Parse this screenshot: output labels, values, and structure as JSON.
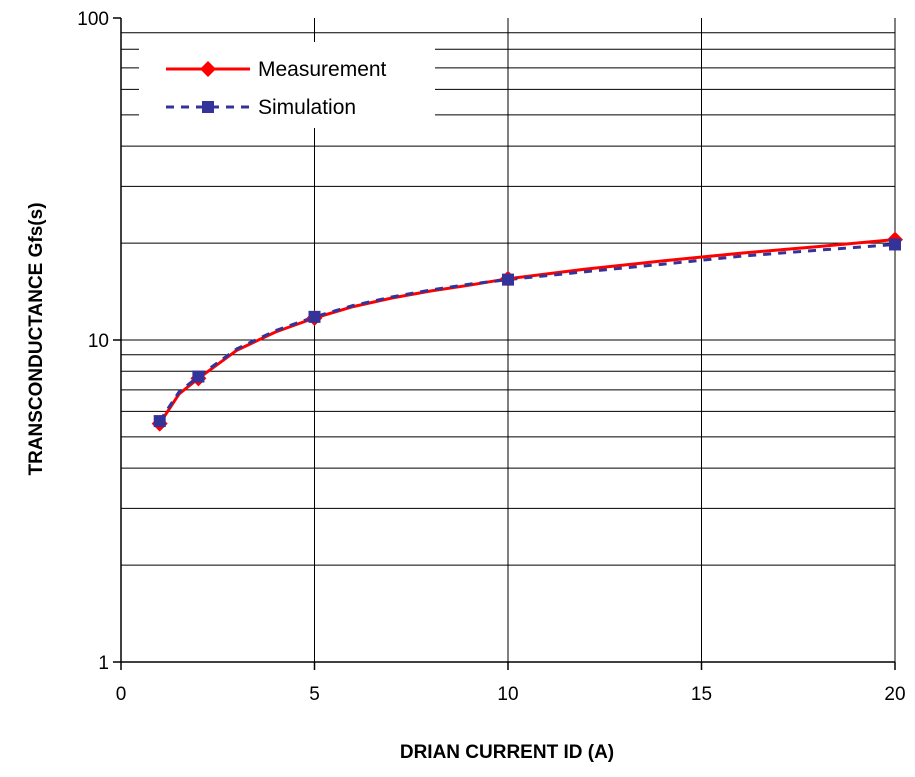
{
  "chart_data": {
    "type": "line",
    "title": "",
    "xlabel": "DRIAN CURRENT ID (A)",
    "ylabel": "TRANSCONDUCTANCE Gfs(s)",
    "xlim": [
      0,
      20
    ],
    "ylim": [
      1,
      100
    ],
    "y_scale": "log",
    "x_ticks": [
      0,
      5,
      10,
      15,
      20
    ],
    "x_tick_labels": [
      "0",
      "5",
      "10",
      "15",
      "20"
    ],
    "y_ticks": [
      1,
      10,
      100
    ],
    "y_tick_labels": [
      "1",
      "10",
      "100"
    ],
    "grid": true,
    "legend_position": "top-left",
    "series": [
      {
        "name": "Measurement",
        "color": "#ff0000",
        "line_style": "solid",
        "marker": "diamond",
        "x": [
          1,
          1.5,
          2,
          3,
          4,
          5,
          6,
          7,
          8,
          9,
          10,
          12,
          14,
          16,
          18,
          20
        ],
        "y": [
          5.5,
          6.8,
          7.6,
          9.3,
          10.6,
          11.7,
          12.7,
          13.5,
          14.2,
          14.8,
          15.5,
          16.6,
          17.6,
          18.6,
          19.5,
          20.5
        ],
        "marker_x": [
          1,
          2,
          5,
          10,
          20
        ],
        "marker_y": [
          5.5,
          7.6,
          11.7,
          15.5,
          20.5
        ]
      },
      {
        "name": "Simulation",
        "color": "#333399",
        "line_style": "dashed",
        "marker": "square",
        "x": [
          1,
          1.5,
          2,
          3,
          4,
          5,
          6,
          7,
          8,
          9,
          10,
          12,
          14,
          16,
          18,
          20
        ],
        "y": [
          5.6,
          6.9,
          7.7,
          9.4,
          10.7,
          11.8,
          12.8,
          13.6,
          14.3,
          14.9,
          15.4,
          16.3,
          17.2,
          18.2,
          19.0,
          19.8
        ],
        "marker_x": [
          1,
          2,
          5,
          10,
          20
        ],
        "marker_y": [
          5.6,
          7.7,
          11.8,
          15.4,
          19.8
        ]
      }
    ]
  }
}
